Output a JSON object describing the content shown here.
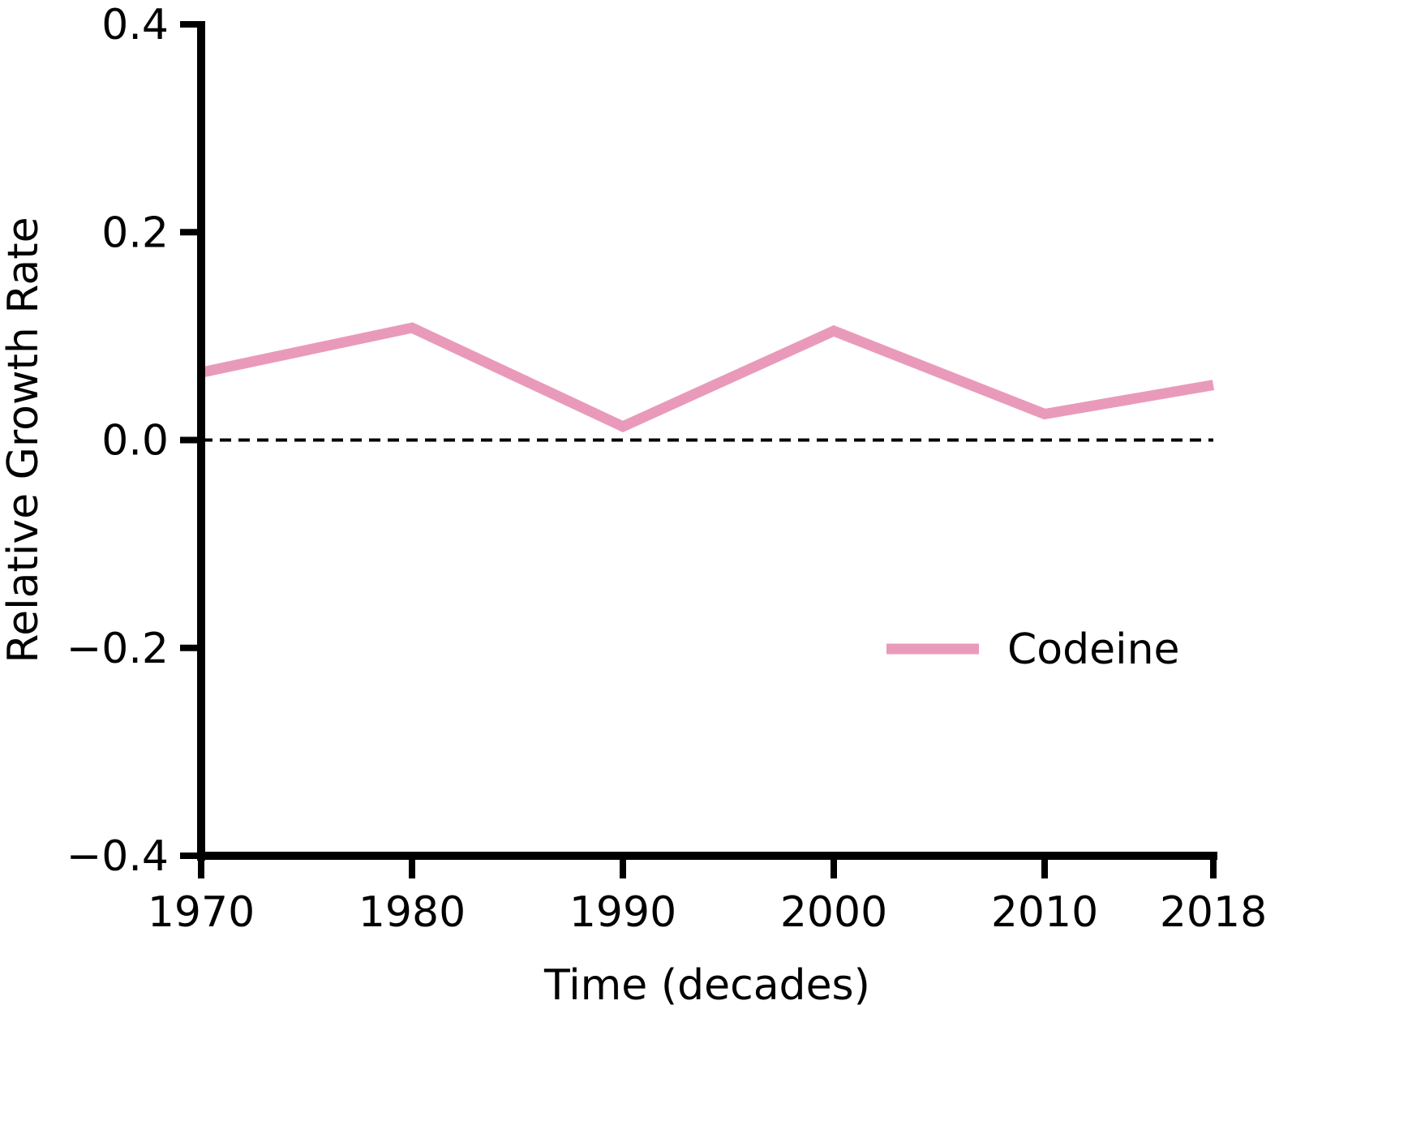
{
  "chart_data": {
    "type": "line",
    "title": "",
    "xlabel": "Time (decades)",
    "ylabel": "Relative Growth Rate",
    "x": [
      1970,
      1980,
      1990,
      2000,
      2010,
      2018
    ],
    "x_tick_labels": [
      "1970",
      "1980",
      "1990",
      "2000",
      "2010",
      "2018"
    ],
    "y_ticks": [
      -0.4,
      -0.2,
      0.0,
      0.2,
      0.4
    ],
    "y_tick_labels": [
      "−0.4",
      "−0.2",
      "0.0",
      "0.2",
      "0.4"
    ],
    "xlim": [
      1970,
      2018
    ],
    "ylim": [
      -0.4,
      0.4
    ],
    "series": [
      {
        "name": "Codeine",
        "color": "#e99abb",
        "values": [
          0.065,
          0.108,
          0.013,
          0.105,
          0.025,
          0.053
        ]
      }
    ],
    "reference_line": {
      "y": 0.0,
      "style": "dashed",
      "color": "#000000"
    },
    "legend": {
      "placement": "right-center"
    },
    "grid": false
  }
}
